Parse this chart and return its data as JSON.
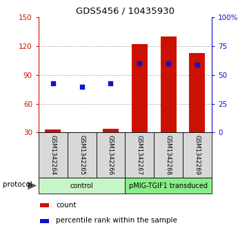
{
  "title": "GDS5456 / 10435930",
  "samples": [
    "GSM1342264",
    "GSM1342265",
    "GSM1342266",
    "GSM1342267",
    "GSM1342268",
    "GSM1342269"
  ],
  "counts": [
    33,
    30,
    34,
    122,
    130,
    113
  ],
  "percentile_ranks": [
    43,
    40,
    43,
    60,
    60,
    59
  ],
  "ylim_left": [
    30,
    150
  ],
  "ylim_right": [
    0,
    100
  ],
  "yticks_left": [
    30,
    60,
    90,
    120,
    150
  ],
  "yticks_right": [
    0,
    25,
    50,
    75,
    100
  ],
  "yticklabels_right": [
    "0",
    "25",
    "50",
    "75",
    "100%"
  ],
  "groups": [
    {
      "label": "control",
      "indices": [
        0,
        1,
        2
      ],
      "color": "#c8f5c8"
    },
    {
      "label": "pMIG-TGIF1 transduced",
      "indices": [
        3,
        4,
        5
      ],
      "color": "#88ee88"
    }
  ],
  "bar_color": "#cc1100",
  "dot_color": "#1111cc",
  "bar_width": 0.55,
  "grid_color": "#888888",
  "legend_count_label": "count",
  "legend_pct_label": "percentile rank within the sample",
  "protocol_label": "protocol",
  "sample_box_color": "#d8d8d8"
}
